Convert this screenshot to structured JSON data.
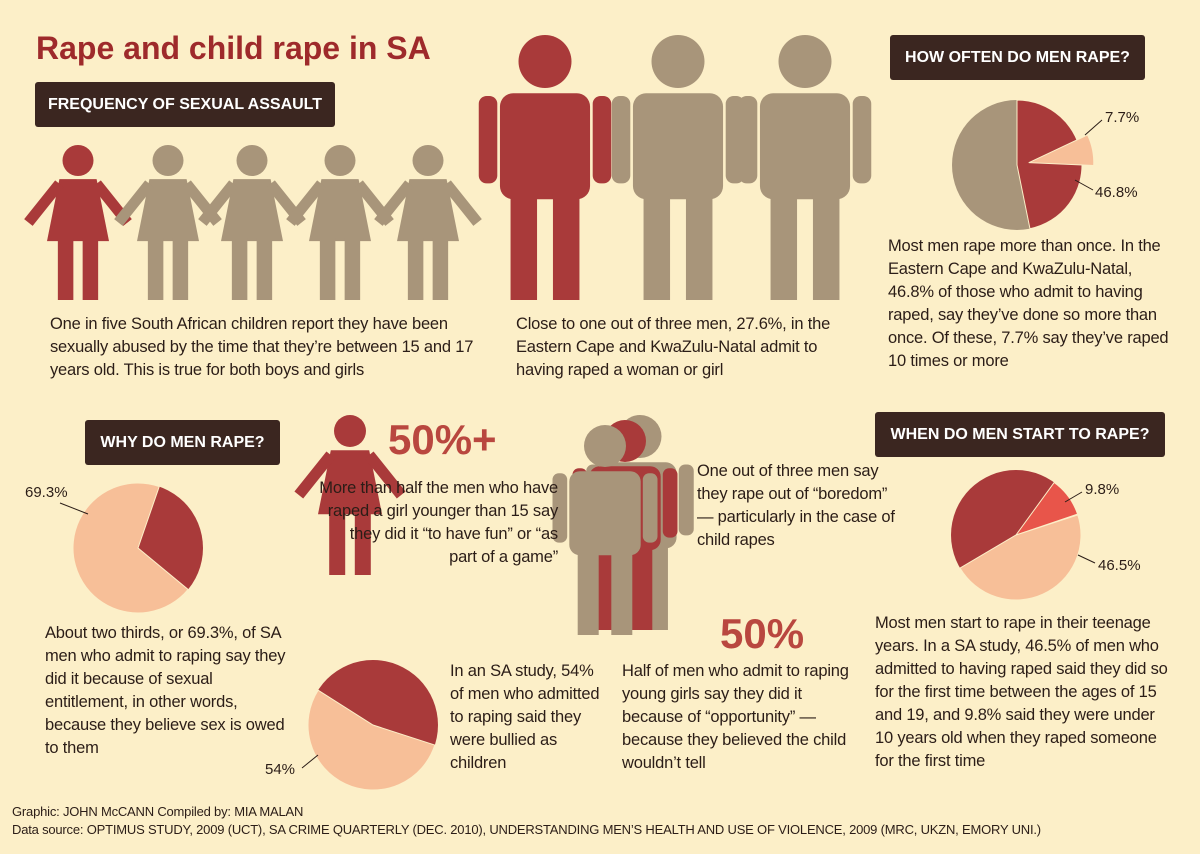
{
  "header": {
    "title": "Rape and child rape in SA"
  },
  "sections": {
    "frequency": {
      "heading": "FREQUENCY OF SEXUAL ASSAULT",
      "text": "One in five South African children report they have been sexually abused by the time that they’re between 15 and 17 years old. This is true for both boys and girls"
    },
    "admit": {
      "text": "Close to one out of three men, 27.6%, in the Eastern Cape and KwaZulu-Natal admit to having raped a woman or girl"
    },
    "how_often": {
      "heading": "HOW OFTEN DO MEN RAPE?",
      "pie": {
        "values": [
          46.8,
          7.7
        ],
        "value_labels": [
          "46.8%",
          "7.7%"
        ]
      },
      "text": "Most men rape more than once. In the Eastern Cape and KwaZulu-Natal, 46.8% of those who admit to having raped, say they’ve done so more than once. Of these, 7.7% say they’ve raped 10 times or more"
    },
    "why": {
      "heading": "WHY DO MEN RAPE?",
      "pie": {
        "values": [
          69.3
        ],
        "value_labels": [
          "69.3%"
        ]
      },
      "text": "About two thirds, or 69.3%, of SA men who admit to raping say they did it because of sexual entitlement, in other words, because they believe sex is owed to them"
    },
    "fun": {
      "headline": "50%+",
      "text": "More than half the men who have raped a girl younger than 15 say they did it “to have fun” or “as part of a game”"
    },
    "boredom": {
      "text": "One out of three men say they rape out of “boredom” — particularly in the case of child rapes"
    },
    "bullied": {
      "pie": {
        "values": [
          54
        ],
        "value_labels": [
          "54%"
        ]
      },
      "text": "In an SA study, 54% of men who admitted to raping said they were bullied as children"
    },
    "opportunity": {
      "headline": "50%",
      "text": "Half of men who admit to raping young girls say they did it because of “opportunity” — because they believed the child wouldn’t tell"
    },
    "when": {
      "heading": "WHEN DO MEN START TO RAPE?",
      "pie": {
        "values": [
          9.8,
          46.5
        ],
        "value_labels": [
          "9.8%",
          "46.5%"
        ]
      },
      "text": "Most men start to rape in their teenage years. In a SA study, 46.5% of men who admitted to having raped said they did so for the first time between the ages of 15 and 19, and 9.8% said they were under 10 years old when they raped someone for the first time"
    }
  },
  "footer": {
    "credits": "Graphic: JOHN McCANN  Compiled by: MIA MALAN",
    "source": "Data source: OPTIMUS STUDY, 2009 (UCT), SA CRIME QUARTERLY (DEC. 2010), UNDERSTANDING MEN’S HEALTH AND USE OF VIOLENCE, 2009 (MRC, UKZN, EMORY UNI.)"
  }
}
